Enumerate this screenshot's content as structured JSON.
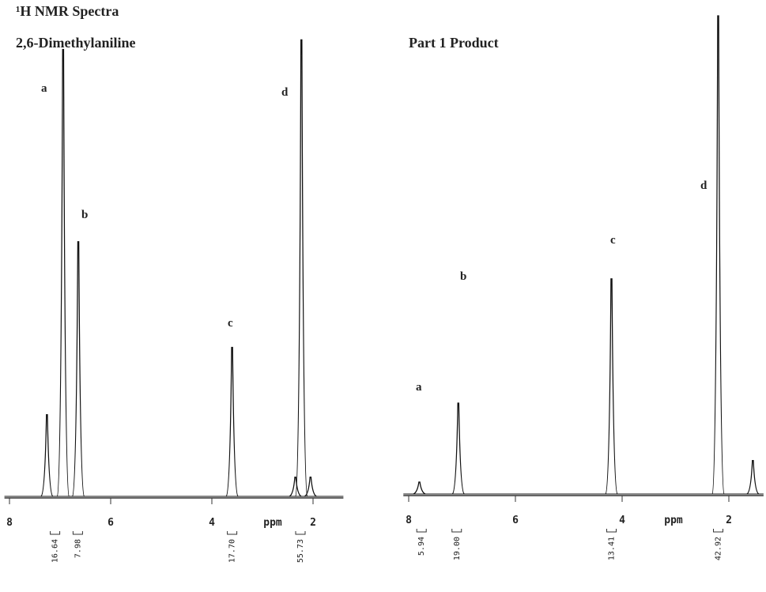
{
  "title": "¹H NMR Spectra",
  "chart_data": [
    {
      "type": "nmr",
      "title": "2,6-Dimethylaniline",
      "xlabel": "ppm",
      "xlim": [
        8.1,
        1.4
      ],
      "xticks": [
        8,
        6,
        4,
        2
      ],
      "ylim": [
        0,
        100
      ],
      "color": "#111111",
      "x": [
        7.26,
        6.94,
        6.64,
        3.6,
        2.35,
        2.23,
        2.05
      ],
      "values": [
        17,
        93,
        53,
        31,
        4,
        95,
        4
      ],
      "annotations": [
        "a",
        "b",
        "c",
        "d"
      ],
      "integrals": [
        {
          "x": 7.1,
          "value": 16.64
        },
        {
          "x": 6.65,
          "value": 7.98
        },
        {
          "x": 3.6,
          "value": 17.7,
          "label": "17.70"
        },
        {
          "x": 2.25,
          "value": 55.73
        }
      ]
    },
    {
      "type": "nmr",
      "title": "Part 1 Product",
      "xlabel": "ppm",
      "xlim": [
        8.1,
        1.35
      ],
      "xticks": [
        8,
        6,
        4,
        2
      ],
      "ylim": [
        0,
        100
      ],
      "color": "#111111",
      "x": [
        7.8,
        7.07,
        4.2,
        2.2,
        1.55
      ],
      "values": [
        2.5,
        19,
        45,
        100,
        7
      ],
      "annotations": [
        "a",
        "b",
        "c",
        "d"
      ],
      "integrals": [
        {
          "x": 7.76,
          "value": 5.94
        },
        {
          "x": 7.1,
          "value": 19.0,
          "label": "19.00"
        },
        {
          "x": 4.2,
          "value": 13.41
        },
        {
          "x": 2.2,
          "value": 42.92
        }
      ]
    }
  ]
}
